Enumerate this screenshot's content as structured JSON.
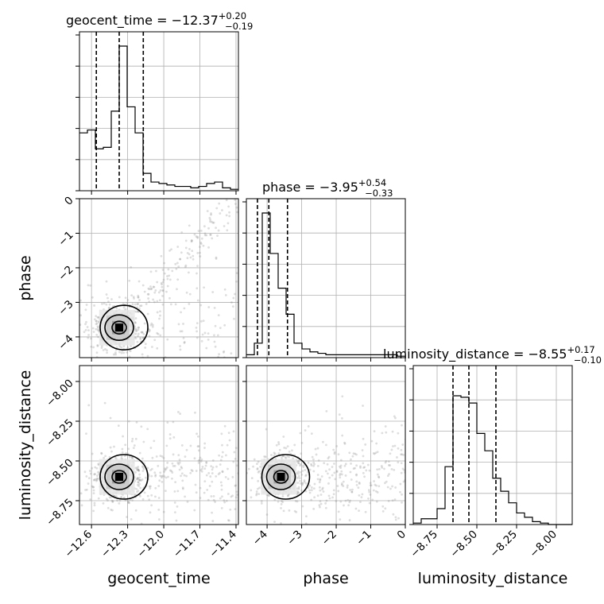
{
  "chart_data": {
    "type": "corner",
    "parameters": [
      "geocent_time",
      "phase",
      "luminosity_distance"
    ],
    "titles": [
      {
        "param": "geocent_time",
        "prefix": "geocent_time = ",
        "median": "−12.37",
        "plus": "+0.20",
        "minus": "−0.19"
      },
      {
        "param": "phase",
        "prefix": "phase = ",
        "median": "−3.95",
        "plus": "+0.54",
        "minus": "−0.33"
      },
      {
        "param": "luminosity_distance",
        "prefix": "luminosity_distance = ",
        "median": "−8.55",
        "plus": "+0.17",
        "minus": "−0.10"
      }
    ],
    "axes": {
      "geocent_time": {
        "range": [
          -12.7,
          -11.38
        ],
        "ticks": [
          -12.6,
          -12.3,
          -12.0,
          -11.7,
          -11.4
        ],
        "tick_labels": [
          "−12.6",
          "−12.3",
          "−12.0",
          "−11.7",
          "−11.4"
        ],
        "label": "geocent_time"
      },
      "phase": {
        "range": [
          -4.6,
          0.0
        ],
        "ticks": [
          -4,
          -3,
          -2,
          -1,
          0
        ],
        "tick_labels": [
          "−4",
          "−3",
          "−2",
          "−1",
          "0"
        ],
        "label": "phase"
      },
      "luminosity_distance": {
        "range": [
          -8.9,
          -7.9
        ],
        "ticks": [
          -8.75,
          -8.5,
          -8.25,
          -8.0
        ],
        "tick_labels": [
          "−8.75",
          "−8.50",
          "−8.25",
          "−8.00"
        ],
        "label": "luminosity_distance"
      }
    },
    "histograms": {
      "geocent_time": {
        "edges_range": [
          -12.7,
          -11.38
        ],
        "counts": [
          0.4,
          0.42,
          0.29,
          0.3,
          0.55,
          1.0,
          0.58,
          0.4,
          0.12,
          0.06,
          0.05,
          0.04,
          0.03,
          0.03,
          0.02,
          0.03,
          0.05,
          0.06,
          0.02,
          0.01
        ],
        "quantiles": [
          -12.56,
          -12.37,
          -12.17
        ]
      },
      "phase": {
        "edges_range": [
          -4.6,
          0.0
        ],
        "counts": [
          0.02,
          0.1,
          1.0,
          0.72,
          0.48,
          0.3,
          0.1,
          0.06,
          0.04,
          0.03,
          0.02,
          0.02,
          0.02,
          0.02,
          0.02,
          0.02,
          0.02,
          0.02,
          0.02,
          0.01
        ],
        "quantiles": [
          -4.28,
          -3.95,
          -3.41
        ]
      },
      "luminosity_distance": {
        "edges_range": [
          -8.9,
          -7.9
        ],
        "counts": [
          0.01,
          0.04,
          0.04,
          0.11,
          0.4,
          0.89,
          0.88,
          0.84,
          0.63,
          0.51,
          0.32,
          0.23,
          0.15,
          0.08,
          0.05,
          0.02,
          0.01,
          0.0,
          0.0,
          0.0
        ],
        "quantiles": [
          -8.65,
          -8.55,
          -8.38
        ]
      }
    },
    "pairs": [
      {
        "x": "geocent_time",
        "y": "phase",
        "mode": [
          -12.37,
          -3.73
        ]
      },
      {
        "x": "geocent_time",
        "y": "luminosity_distance",
        "mode": [
          -12.37,
          -8.6
        ]
      },
      {
        "x": "phase",
        "y": "luminosity_distance",
        "mode": [
          -3.6,
          -8.6
        ]
      }
    ],
    "grid": true
  }
}
